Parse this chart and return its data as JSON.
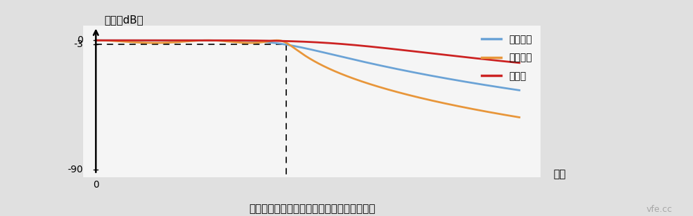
{
  "title": "巴特沃斯、切比雪夫、貝塞爾濾波器幅頻特性",
  "ylabel": "幅值（dB）",
  "xlabel": "頻率",
  "legend_labels": [
    "巴特沃斯",
    "切比雪夫",
    "貝塞爾"
  ],
  "butterworth_color": "#6ba3d6",
  "chebyshev_color": "#e8963a",
  "bessel_color": "#cc2222",
  "dashed_color": "#111111",
  "background_color": "#e0e0e0",
  "plot_bg_color": "#f5f5f5",
  "figsize": [
    10.0,
    3.12
  ],
  "dpi": 100,
  "watermark": "vfe.cc",
  "title_fontsize": 11,
  "legend_fontsize": 11,
  "axis_label_fontsize": 11,
  "tick_fontsize": 10,
  "linewidth": 2.0,
  "ytick_labels": [
    "0",
    "-3",
    "-90"
  ],
  "ytick_vals": [
    0,
    -3,
    -90
  ],
  "xtick_label": "0"
}
